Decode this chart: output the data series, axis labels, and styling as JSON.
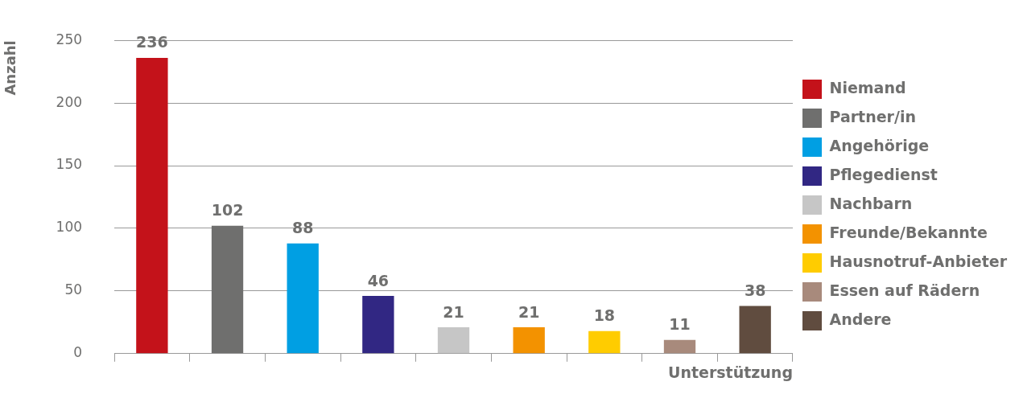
{
  "chart_data": {
    "type": "bar",
    "xlabel": "Unterstützung",
    "ylabel": "Anzahl",
    "categories": [
      null,
      null,
      null,
      null,
      null,
      null,
      null,
      null,
      null
    ],
    "series": [
      {
        "name": "Niemand",
        "color": "#c4121a",
        "values": [
          236,
          null,
          null,
          null,
          null,
          null,
          null,
          null,
          null
        ]
      },
      {
        "name": "Partner/in",
        "color": "#6f6f6e",
        "values": [
          null,
          102,
          null,
          null,
          null,
          null,
          null,
          null,
          null
        ]
      },
      {
        "name": "Angehörige",
        "color": "#009fe3",
        "values": [
          null,
          null,
          88,
          null,
          null,
          null,
          null,
          null,
          null
        ]
      },
      {
        "name": "Pflegedienst",
        "color": "#312783",
        "values": [
          null,
          null,
          null,
          46,
          null,
          null,
          null,
          null,
          null
        ]
      },
      {
        "name": "Nachbarn",
        "color": "#c6c6c6",
        "values": [
          null,
          null,
          null,
          null,
          21,
          null,
          null,
          null,
          null
        ]
      },
      {
        "name": "Freunde/Bekannte",
        "color": "#f39200",
        "values": [
          null,
          null,
          null,
          null,
          null,
          21,
          null,
          null,
          null
        ]
      },
      {
        "name": "Hausnotruf-Anbieter",
        "color": "#ffcc00",
        "values": [
          null,
          null,
          null,
          null,
          null,
          null,
          18,
          null,
          null
        ]
      },
      {
        "name": "Essen auf Rädern",
        "color": "#a88a7c",
        "values": [
          null,
          null,
          null,
          null,
          null,
          null,
          null,
          11,
          null
        ]
      },
      {
        "name": "Andere",
        "color": "#604c3f",
        "values": [
          null,
          null,
          null,
          null,
          null,
          null,
          null,
          null,
          38
        ]
      }
    ],
    "ylim": [
      0,
      250
    ],
    "yticks": [
      0,
      50,
      100,
      150,
      200,
      250
    ],
    "grid": "y",
    "legend": "right",
    "tick_labels": "y",
    "data_labels": true
  }
}
